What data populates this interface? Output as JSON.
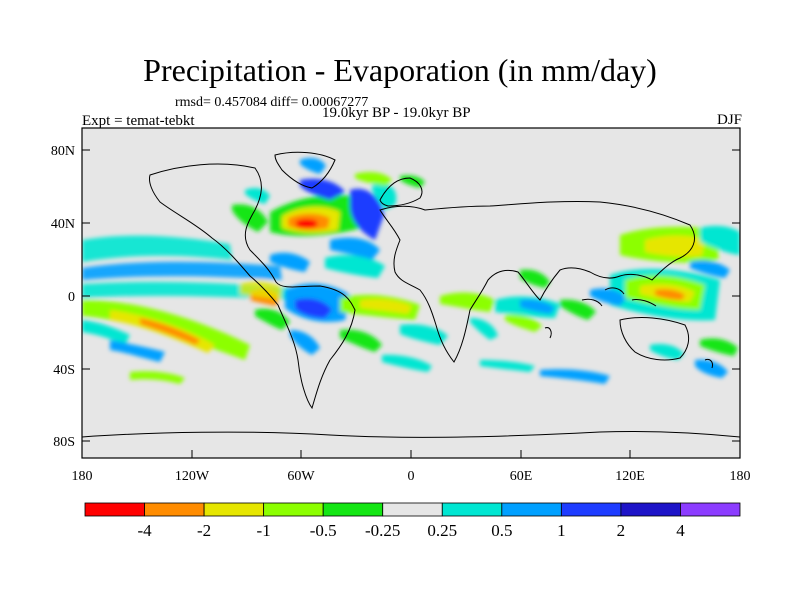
{
  "title": "Precipitation - Evaporation (in mm/day)",
  "stats": "rmsd= 0.457084 diff= 0.00067277",
  "expt": "Expt = temat-tebkt",
  "period": "19.0kyr BP - 19.0kyr BP",
  "season": "DJF",
  "lat_labels": [
    "80N",
    "40N",
    "0",
    "40S",
    "80S"
  ],
  "lon_labels": [
    "180",
    "120W",
    "60W",
    "0",
    "60E",
    "120E",
    "180"
  ],
  "colorbar": {
    "labels": [
      "-4",
      "-2",
      "-1",
      "-0.5",
      "-0.25",
      "0.25",
      "0.5",
      "1",
      "2",
      "4"
    ],
    "colors": [
      "#ff0000",
      "#ff8c00",
      "#e6e600",
      "#8cff00",
      "#14e614",
      "#e6e6e6",
      "#00e6d2",
      "#00a0ff",
      "#1e3cff",
      "#1e14c8",
      "#8c3cff"
    ]
  },
  "colors": {
    "ocean_background": "#e6e6e6",
    "coast": "#000000"
  }
}
